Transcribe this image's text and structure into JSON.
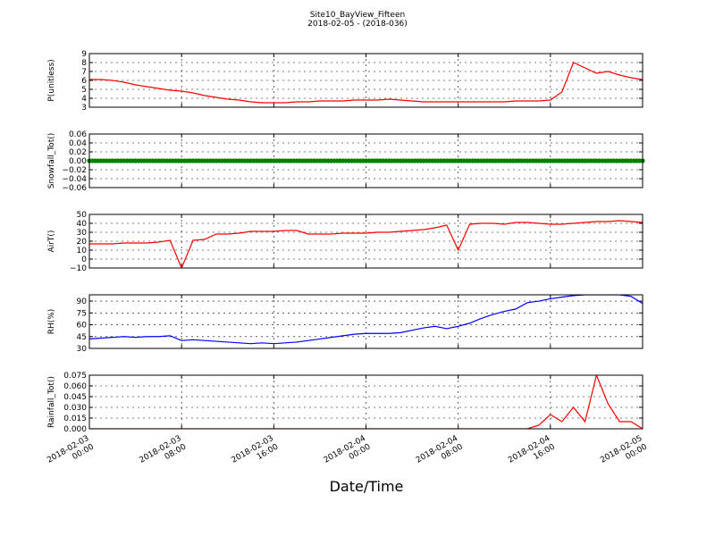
{
  "chart_data": [
    {
      "type": "line",
      "title": "Site10_BayView_Fifteen",
      "subtitle": "2018-02-05 - (2018-036)",
      "y_label": "P(unitless)",
      "color": "#ff0000",
      "grid": true,
      "xlim": [
        0,
        48
      ],
      "xticks": [
        0,
        8,
        16,
        24,
        32,
        40,
        48
      ],
      "x": [
        0,
        1,
        2,
        3,
        4,
        5,
        6,
        7,
        8,
        9,
        10,
        11,
        12,
        13,
        14,
        15,
        16,
        17,
        18,
        19,
        20,
        21,
        22,
        23,
        24,
        25,
        26,
        27,
        28,
        29,
        30,
        31,
        32,
        33,
        34,
        35,
        36,
        37,
        38,
        39,
        40,
        41,
        42,
        43,
        44,
        45,
        46,
        47,
        48
      ],
      "values": [
        6.1,
        6.1,
        6.0,
        5.8,
        5.5,
        5.3,
        5.1,
        4.9,
        4.8,
        4.6,
        4.3,
        4.1,
        3.9,
        3.8,
        3.6,
        3.5,
        3.5,
        3.5,
        3.6,
        3.6,
        3.7,
        3.7,
        3.7,
        3.8,
        3.8,
        3.8,
        3.9,
        3.8,
        3.7,
        3.6,
        3.6,
        3.6,
        3.6,
        3.6,
        3.6,
        3.6,
        3.6,
        3.7,
        3.7,
        3.7,
        3.8,
        4.7,
        8.0,
        7.4,
        6.8,
        7.0,
        6.6,
        6.3,
        6.1
      ],
      "ylim": [
        3,
        9
      ],
      "yticks": [
        3,
        4,
        5,
        6,
        7,
        8,
        9
      ]
    },
    {
      "type": "line",
      "y_label": "Snowfall_Tot()",
      "color": "#008000",
      "grid": true,
      "markers": true,
      "xlim": [
        0,
        48
      ],
      "xticks": [
        0,
        8,
        16,
        24,
        32,
        40,
        48
      ],
      "x": [
        0,
        1,
        2,
        3,
        4,
        5,
        6,
        7,
        8,
        9,
        10,
        11,
        12,
        13,
        14,
        15,
        16,
        17,
        18,
        19,
        20,
        21,
        22,
        23,
        24,
        25,
        26,
        27,
        28,
        29,
        30,
        31,
        32,
        33,
        34,
        35,
        36,
        37,
        38,
        39,
        40,
        41,
        42,
        43,
        44,
        45,
        46,
        47,
        48
      ],
      "values": [
        0,
        0,
        0,
        0,
        0,
        0,
        0,
        0,
        0,
        0,
        0,
        0,
        0,
        0,
        0,
        0,
        0,
        0,
        0,
        0,
        0,
        0,
        0,
        0,
        0,
        0,
        0,
        0,
        0,
        0,
        0,
        0,
        0,
        0,
        0,
        0,
        0,
        0,
        0,
        0,
        0,
        0,
        0,
        0,
        0,
        0,
        0,
        0,
        0
      ],
      "ylim": [
        -0.06,
        0.06
      ],
      "yticks": [
        {
          "value": -0.06,
          "label": "−0.06"
        },
        {
          "value": -0.04,
          "label": "−0.04"
        },
        {
          "value": -0.02,
          "label": "−0.02"
        },
        {
          "value": 0,
          "label": "0.00"
        },
        0.02,
        0.04,
        0.06
      ]
    },
    {
      "type": "line",
      "y_label": "AirT()",
      "color": "#ff0000",
      "grid": true,
      "xlim": [
        0,
        48
      ],
      "xticks": [
        0,
        8,
        16,
        24,
        32,
        40,
        48
      ],
      "x": [
        0,
        1,
        2,
        3,
        4,
        5,
        6,
        7,
        8,
        9,
        10,
        11,
        12,
        13,
        14,
        15,
        16,
        17,
        18,
        19,
        20,
        21,
        22,
        23,
        24,
        25,
        26,
        27,
        28,
        29,
        30,
        31,
        32,
        33,
        34,
        35,
        36,
        37,
        38,
        39,
        40,
        41,
        42,
        43,
        44,
        45,
        46,
        47,
        48
      ],
      "values": [
        17,
        17,
        17,
        18,
        18,
        18,
        19,
        21,
        -10,
        21,
        22,
        28,
        28,
        29,
        31,
        31,
        31,
        32,
        32,
        28,
        28,
        28,
        29,
        29,
        29,
        30,
        30,
        31,
        32,
        33,
        35,
        38,
        10,
        39,
        40,
        40,
        39,
        41,
        41,
        40,
        39,
        39,
        40,
        41,
        42,
        42,
        43,
        42,
        41
      ],
      "ylim": [
        -10,
        50
      ],
      "yticks": [
        {
          "value": -10,
          "label": "−10"
        },
        0,
        10,
        20,
        30,
        40,
        50
      ]
    },
    {
      "type": "line",
      "y_label": "RH(%)",
      "color": "#0000ff",
      "grid": true,
      "xlim": [
        0,
        48
      ],
      "xticks": [
        0,
        8,
        16,
        24,
        32,
        40,
        48
      ],
      "x": [
        0,
        1,
        2,
        3,
        4,
        5,
        6,
        7,
        8,
        9,
        10,
        11,
        12,
        13,
        14,
        15,
        16,
        17,
        18,
        19,
        20,
        21,
        22,
        23,
        24,
        25,
        26,
        27,
        28,
        29,
        30,
        31,
        32,
        33,
        34,
        35,
        36,
        37,
        38,
        39,
        40,
        41,
        42,
        43,
        44,
        45,
        46,
        47,
        48
      ],
      "values": [
        42,
        43,
        44,
        45,
        44,
        45,
        45,
        46,
        40,
        41,
        40,
        39,
        38,
        37,
        36,
        37,
        36,
        37,
        38,
        40,
        42,
        44,
        46,
        48,
        49,
        49,
        49,
        50,
        53,
        56,
        58,
        55,
        58,
        62,
        68,
        73,
        77,
        80,
        88,
        90,
        93,
        95,
        97,
        98,
        98,
        98,
        98,
        96,
        87
      ],
      "ylim": [
        30,
        98
      ],
      "yticks": [
        30,
        45,
        60,
        75,
        90
      ]
    },
    {
      "type": "line",
      "y_label": "Rainfall_Tot()",
      "x_label": "Date/Time",
      "color": "#ff0000",
      "grid": true,
      "xlim": [
        0,
        48
      ],
      "xticks": [
        {
          "value": 0,
          "label": "2018-02-03 00:00"
        },
        {
          "value": 8,
          "label": "2018-02-03 08:00"
        },
        {
          "value": 16,
          "label": "2018-02-03 16:00"
        },
        {
          "value": 24,
          "label": "2018-02-04 00:00"
        },
        {
          "value": 32,
          "label": "2018-02-04 08:00"
        },
        {
          "value": 40,
          "label": "2018-02-04 16:00"
        },
        {
          "value": 48,
          "label": "2018-02-05 00:00"
        }
      ],
      "x": [
        0,
        1,
        2,
        3,
        4,
        5,
        6,
        7,
        8,
        9,
        10,
        11,
        12,
        13,
        14,
        15,
        16,
        17,
        18,
        19,
        20,
        21,
        22,
        23,
        24,
        25,
        26,
        27,
        28,
        29,
        30,
        31,
        32,
        33,
        34,
        35,
        36,
        37,
        38,
        39,
        40,
        41,
        42,
        43,
        44,
        45,
        46,
        47,
        48
      ],
      "values": [
        0,
        0,
        0,
        0,
        0,
        0,
        0,
        0,
        0,
        0,
        0,
        0,
        0,
        0,
        0,
        0,
        0,
        0,
        0,
        0,
        0,
        0,
        0,
        0,
        0,
        0,
        0,
        0,
        0,
        0,
        0,
        0,
        0,
        0,
        0,
        0,
        0,
        0,
        0,
        0.005,
        0.02,
        0.01,
        0.03,
        0.01,
        0.075,
        0.035,
        0.01,
        0.01,
        0
      ],
      "ylim": [
        0,
        0.075
      ],
      "yticks": [
        {
          "value": 0,
          "label": "0.000"
        },
        0.015,
        {
          "value": 0.03,
          "label": "0.030"
        },
        0.045,
        {
          "value": 0.06,
          "label": "0.060"
        },
        0.075
      ]
    }
  ]
}
